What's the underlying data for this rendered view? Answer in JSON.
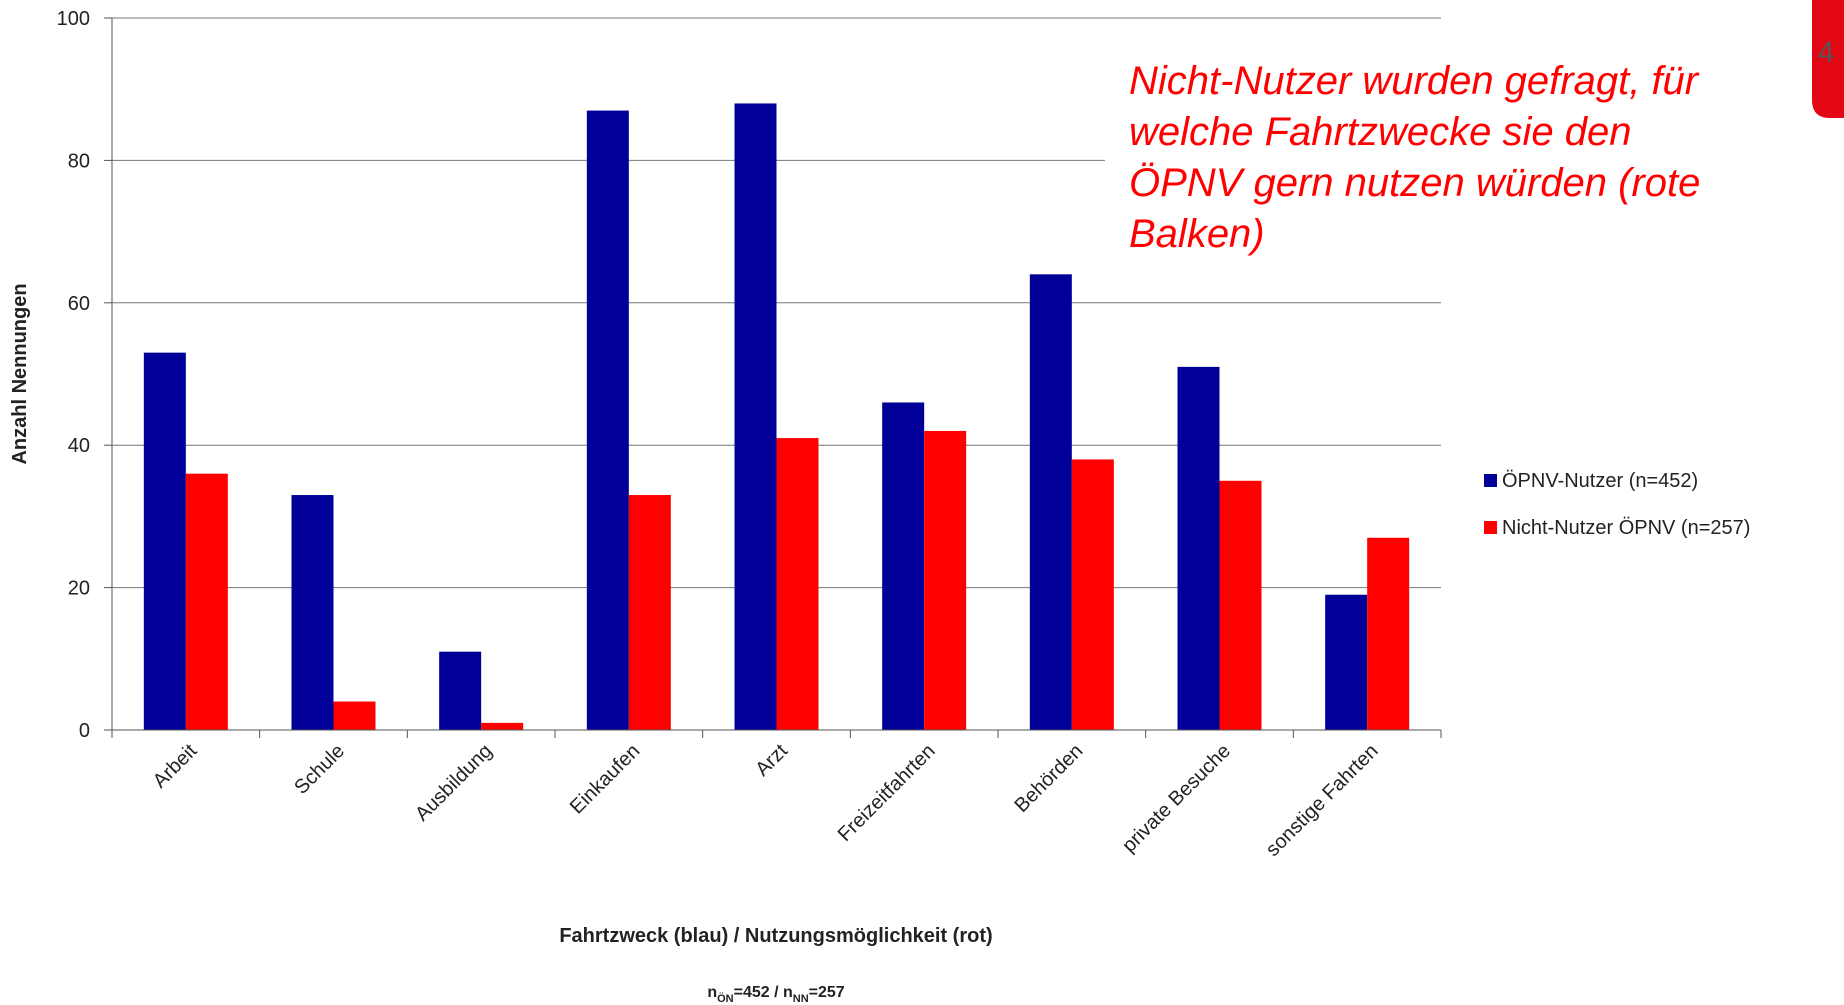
{
  "chart_data": {
    "type": "bar",
    "categories": [
      "Arbeit",
      "Schule",
      "Ausbildung",
      "Einkaufen",
      "Arzt",
      "Freizeitfahrten",
      "Behörden",
      "private Besuche",
      "sonstige Fahrten"
    ],
    "series": [
      {
        "name": "ÖPNV-Nutzer (n=452)",
        "color": "#000099",
        "values": [
          53,
          33,
          11,
          87,
          88,
          46,
          64,
          51,
          19
        ]
      },
      {
        "name": "Nicht-Nutzer ÖPNV (n=257)",
        "color": "#ff0000",
        "values": [
          36,
          4,
          1,
          33,
          41,
          42,
          38,
          35,
          27
        ]
      }
    ],
    "ylim": [
      0,
      100
    ],
    "yticks": [
      0,
      20,
      40,
      60,
      80,
      100
    ],
    "grid": true,
    "y_label": "Anzahl Nennungen",
    "x_label": "Fahrtzweck (blau) / Nutzungsmöglichkeit (rot)",
    "annotation": [
      "Nicht-Nutzer wurden gefragt, für",
      "welche Fahrtzwecke sie den",
      "ÖPNV gern nutzen würden (rote",
      "Balken)"
    ],
    "footnote": [
      "n",
      "ÖN",
      "=452 / n",
      "NN",
      "=257"
    ],
    "legend": "right",
    "page_number": "4"
  }
}
